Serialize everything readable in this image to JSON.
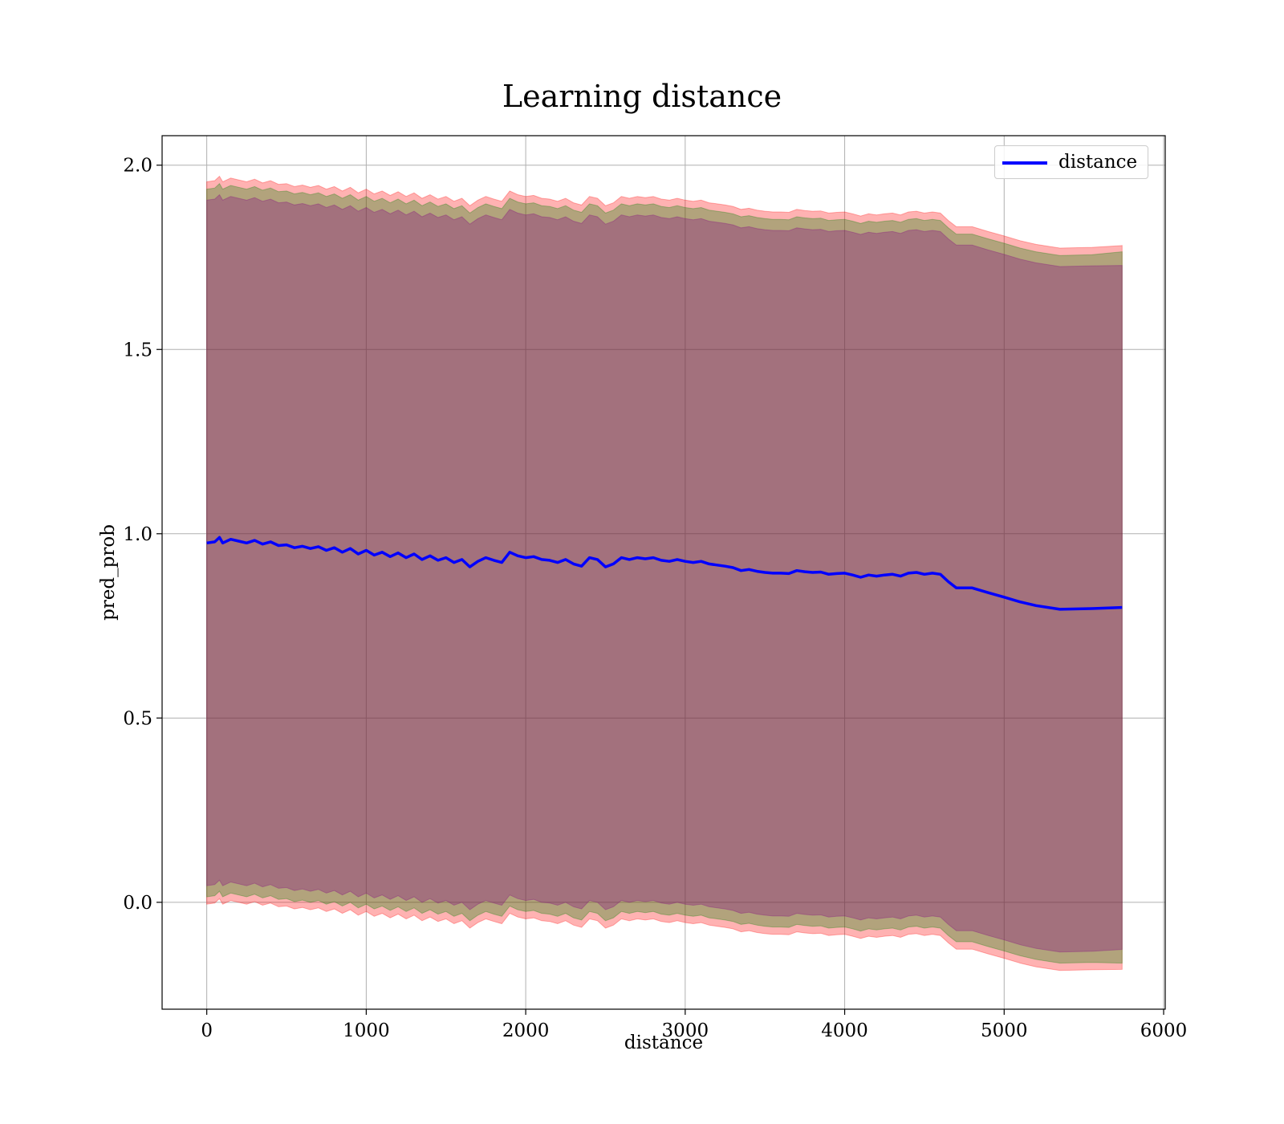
{
  "chart_data": {
    "type": "line",
    "title": "Learning distance",
    "xlabel": "distance",
    "ylabel": "pred_prob",
    "xlim": [
      -280,
      6010
    ],
    "ylim": [
      -0.29,
      2.08
    ],
    "xticks": [
      0,
      1000,
      2000,
      3000,
      4000,
      5000,
      6000
    ],
    "yticks": [
      0.0,
      0.5,
      1.0,
      1.5,
      2.0
    ],
    "grid": true,
    "legend_position": "top-right",
    "series": [
      {
        "name": "distance",
        "color": "#0000ff",
        "x": [
          0,
          50,
          80,
          100,
          150,
          200,
          250,
          300,
          350,
          400,
          450,
          500,
          550,
          600,
          650,
          700,
          750,
          800,
          850,
          900,
          950,
          1000,
          1050,
          1100,
          1150,
          1200,
          1250,
          1300,
          1350,
          1400,
          1450,
          1500,
          1550,
          1600,
          1650,
          1700,
          1750,
          1800,
          1850,
          1900,
          1950,
          2000,
          2050,
          2100,
          2150,
          2200,
          2250,
          2300,
          2350,
          2400,
          2450,
          2500,
          2550,
          2600,
          2650,
          2700,
          2750,
          2800,
          2850,
          2900,
          2950,
          3000,
          3050,
          3100,
          3150,
          3200,
          3250,
          3300,
          3350,
          3400,
          3450,
          3500,
          3550,
          3600,
          3650,
          3700,
          3750,
          3800,
          3850,
          3900,
          3950,
          4000,
          4050,
          4100,
          4150,
          4200,
          4250,
          4300,
          4350,
          4400,
          4450,
          4500,
          4550,
          4600,
          4650,
          4700,
          4800,
          4900,
          5000,
          5100,
          5200,
          5350,
          5550,
          5740
        ],
        "y": [
          0.975,
          0.978,
          0.99,
          0.975,
          0.985,
          0.98,
          0.975,
          0.982,
          0.972,
          0.978,
          0.968,
          0.97,
          0.962,
          0.966,
          0.96,
          0.965,
          0.955,
          0.962,
          0.95,
          0.96,
          0.945,
          0.955,
          0.942,
          0.95,
          0.938,
          0.948,
          0.935,
          0.945,
          0.93,
          0.94,
          0.928,
          0.935,
          0.922,
          0.93,
          0.91,
          0.925,
          0.935,
          0.928,
          0.922,
          0.95,
          0.94,
          0.935,
          0.938,
          0.93,
          0.928,
          0.922,
          0.93,
          0.918,
          0.912,
          0.935,
          0.93,
          0.91,
          0.918,
          0.935,
          0.93,
          0.935,
          0.932,
          0.935,
          0.928,
          0.925,
          0.93,
          0.925,
          0.922,
          0.925,
          0.918,
          0.915,
          0.912,
          0.908,
          0.9,
          0.903,
          0.898,
          0.895,
          0.893,
          0.893,
          0.892,
          0.9,
          0.897,
          0.895,
          0.896,
          0.89,
          0.892,
          0.893,
          0.888,
          0.882,
          0.888,
          0.885,
          0.888,
          0.89,
          0.885,
          0.893,
          0.895,
          0.89,
          0.893,
          0.89,
          0.87,
          0.853,
          0.853,
          0.84,
          0.828,
          0.815,
          0.805,
          0.795,
          0.797,
          0.8
        ]
      }
    ],
    "bands": [
      {
        "color": "#ff0000",
        "opacity": 0.3,
        "upper_offset": 0.98,
        "lower_offset": 0.98,
        "end_upper": 1.782,
        "end_lower": -0.182
      },
      {
        "color": "#008000",
        "opacity": 0.3,
        "upper_offset": 0.96,
        "lower_offset": 0.96,
        "end_upper": 1.765,
        "end_lower": -0.165
      },
      {
        "color": "#800080",
        "opacity": 0.3,
        "upper_offset": 0.93,
        "lower_offset": 0.93,
        "end_upper": 1.728,
        "end_lower": -0.128
      }
    ]
  }
}
